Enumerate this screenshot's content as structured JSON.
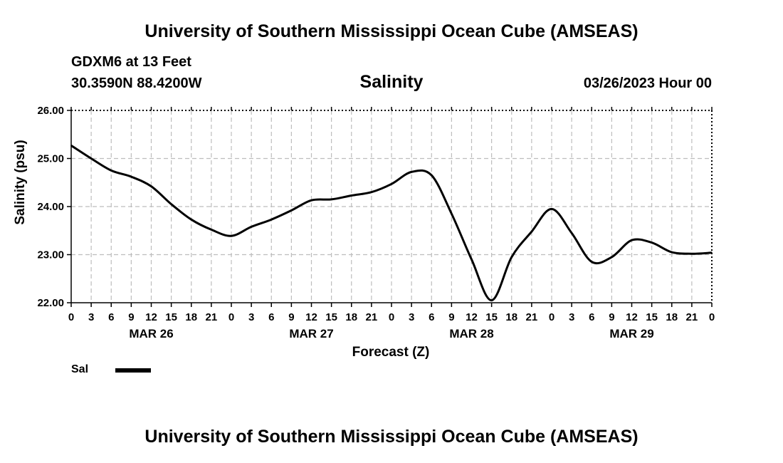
{
  "header": {
    "title": "University of Southern Mississippi Ocean Cube (AMSEAS)",
    "station": "GDXM6 at 13 Feet",
    "coords": "30.3590N  88.4200W",
    "run_date": "03/26/2023 Hour 00"
  },
  "footer": {
    "title": "University of Southern Mississippi Ocean Cube (AMSEAS)"
  },
  "legend": {
    "label": "Sal"
  },
  "chart_data": {
    "type": "line",
    "title": "Salinity",
    "xlabel": "Forecast (Z)",
    "ylabel": "Salinity (psu)",
    "ylim": [
      22.0,
      26.0
    ],
    "xlim": [
      0,
      96
    ],
    "x_units": "hours since 03/26/2023 00Z",
    "grid": true,
    "y_ticks": [
      "22.00",
      "23.00",
      "24.00",
      "25.00",
      "26.00"
    ],
    "x_tick_labels": [
      "0",
      "3",
      "6",
      "9",
      "12",
      "15",
      "18",
      "21",
      "0",
      "3",
      "6",
      "9",
      "12",
      "15",
      "18",
      "21",
      "0",
      "3",
      "6",
      "9",
      "12",
      "15",
      "18",
      "21",
      "0",
      "3",
      "6",
      "9",
      "12",
      "15",
      "18",
      "21",
      "0"
    ],
    "day_labels": [
      "MAR 26",
      "MAR 27",
      "MAR 28",
      "MAR 29"
    ],
    "series": [
      {
        "name": "Sal",
        "color": "#000000",
        "x": [
          0,
          3,
          6,
          9,
          12,
          15,
          18,
          21,
          24,
          27,
          30,
          33,
          36,
          39,
          42,
          45,
          48,
          51,
          54,
          57,
          60,
          63,
          66,
          69,
          72,
          75,
          78,
          81,
          84,
          87,
          90,
          93,
          96
        ],
        "values": [
          25.27,
          25.0,
          24.75,
          24.62,
          24.42,
          24.05,
          23.73,
          23.52,
          23.39,
          23.58,
          23.73,
          23.92,
          24.13,
          24.15,
          24.23,
          24.3,
          24.47,
          24.72,
          24.65,
          23.85,
          22.9,
          22.05,
          22.95,
          23.48,
          23.95,
          23.45,
          22.85,
          22.95,
          23.3,
          23.25,
          23.05,
          23.02,
          23.04
        ]
      }
    ]
  }
}
